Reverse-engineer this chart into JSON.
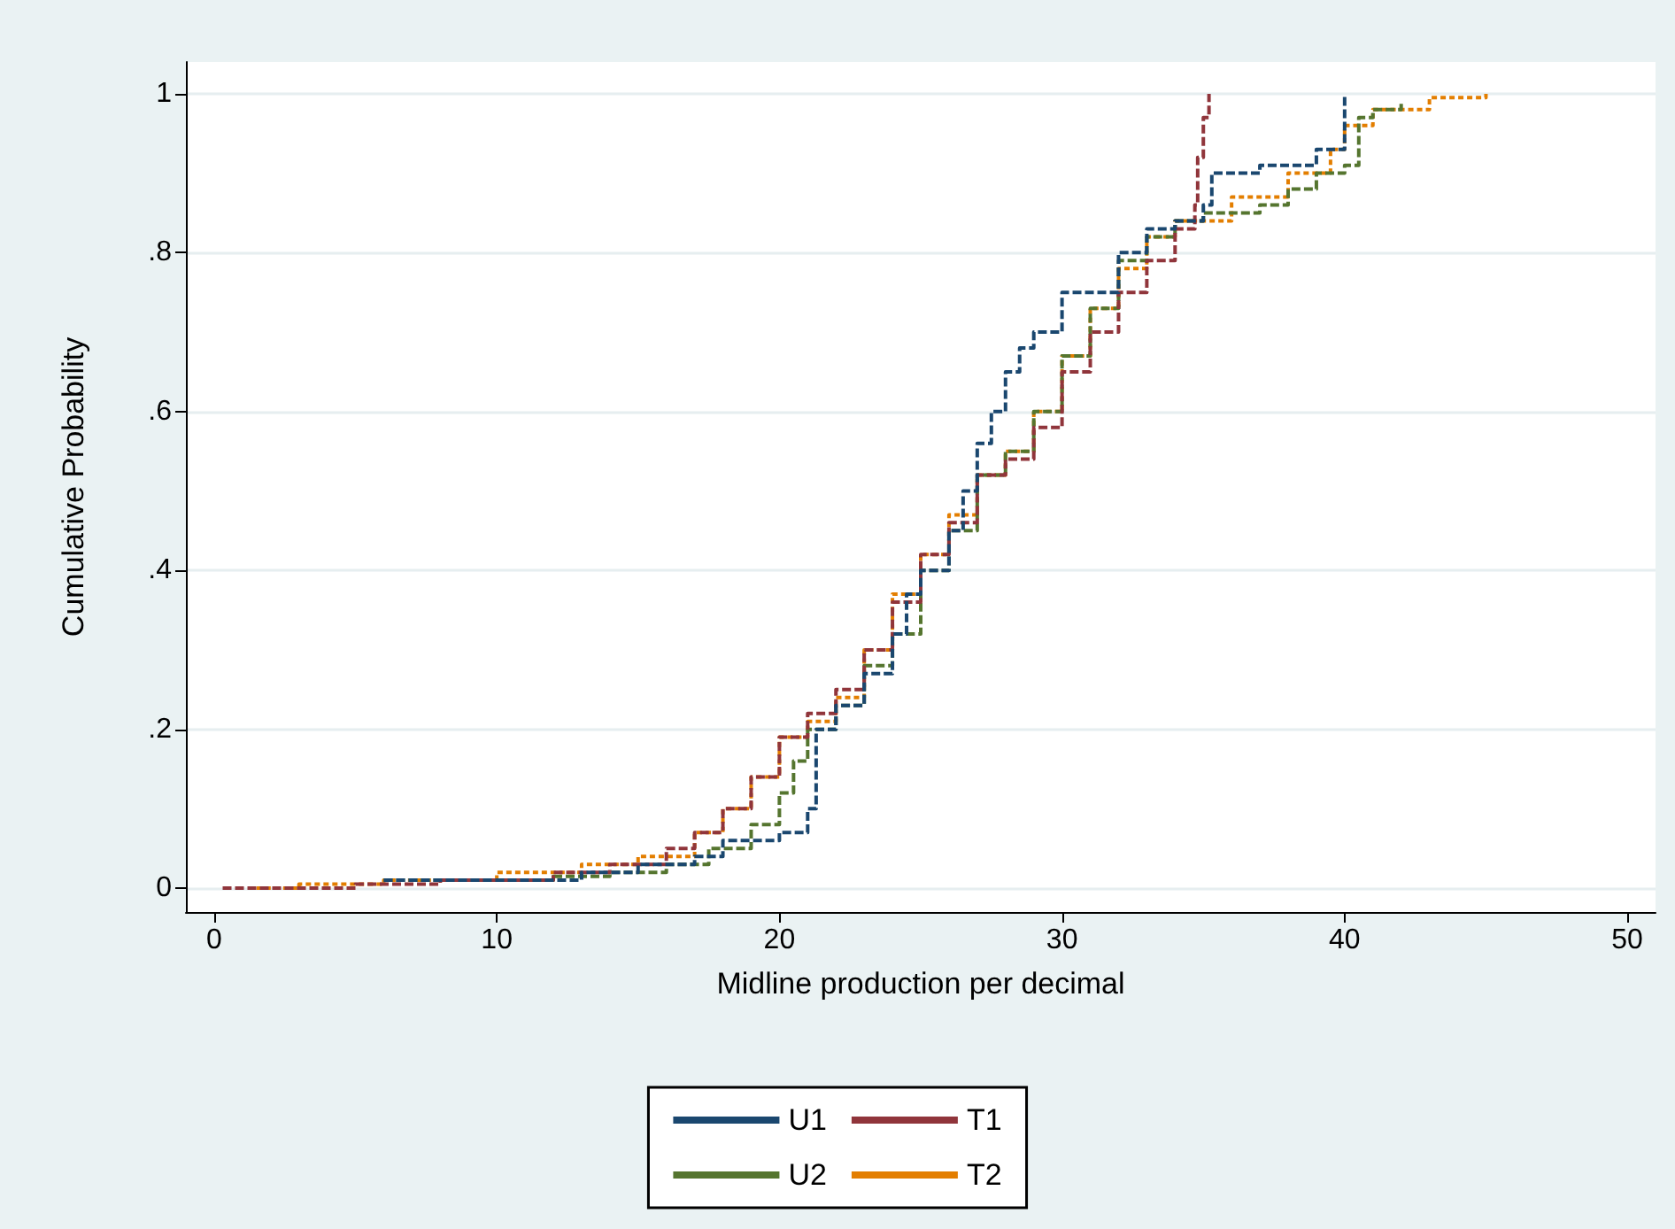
{
  "chart_data": {
    "type": "step",
    "xlabel": "Midline production per decimal",
    "ylabel": "Cumulative Probability",
    "xlim": [
      -1,
      51
    ],
    "xticks": [
      0,
      10,
      20,
      30,
      40,
      50
    ],
    "ylim": [
      -0.03,
      1.04
    ],
    "yticks": [
      {
        "value": 0,
        "label": "0"
      },
      {
        "value": 0.2,
        "label": ".2"
      },
      {
        "value": 0.4,
        "label": ".4"
      },
      {
        "value": 0.6,
        "label": ".6"
      },
      {
        "value": 0.8,
        "label": ".8"
      },
      {
        "value": 1,
        "label": "1"
      }
    ],
    "grid": "y",
    "legend": "bottom",
    "marker": "none",
    "series": [
      {
        "name": "U1",
        "color": "#1a476f",
        "line_style": "dashed",
        "x": [
          6,
          13,
          15,
          17,
          18,
          20,
          21,
          21.3,
          22,
          23,
          24,
          24.5,
          25,
          26,
          26.5,
          27,
          27.5,
          28,
          28.5,
          29,
          30,
          31,
          32,
          33,
          34,
          35,
          35.3,
          37,
          39,
          40
        ],
        "values": [
          0.01,
          0.02,
          0.03,
          0.04,
          0.06,
          0.07,
          0.1,
          0.2,
          0.23,
          0.27,
          0.32,
          0.37,
          0.4,
          0.45,
          0.5,
          0.56,
          0.6,
          0.65,
          0.68,
          0.7,
          0.75,
          0.75,
          0.8,
          0.83,
          0.84,
          0.86,
          0.9,
          0.91,
          0.93,
          1.0
        ]
      },
      {
        "name": "T1",
        "color": "#90353b",
        "line_style": "dashed",
        "x": [
          0.3,
          5,
          8,
          12,
          14,
          16,
          17,
          18,
          19,
          20,
          21,
          22,
          23,
          24,
          25,
          26,
          27,
          28,
          29,
          30,
          31,
          32,
          33,
          34,
          34.7,
          34.8,
          35,
          35.2
        ],
        "values": [
          0,
          0.005,
          0.01,
          0.02,
          0.03,
          0.05,
          0.07,
          0.1,
          0.14,
          0.19,
          0.22,
          0.25,
          0.3,
          0.36,
          0.42,
          0.46,
          0.52,
          0.54,
          0.58,
          0.65,
          0.7,
          0.75,
          0.79,
          0.83,
          0.86,
          0.92,
          0.97,
          1.0
        ]
      },
      {
        "name": "U2",
        "color": "#55752f",
        "line_style": "dashed",
        "x": [
          6,
          12,
          14,
          16,
          17.5,
          19,
          20,
          20.5,
          21,
          22,
          23,
          24,
          25,
          26,
          27,
          28,
          29,
          30,
          31,
          32,
          33,
          34,
          35,
          37,
          38,
          39,
          40,
          40.5,
          41,
          42
        ],
        "values": [
          0.01,
          0.015,
          0.02,
          0.03,
          0.05,
          0.08,
          0.12,
          0.16,
          0.2,
          0.23,
          0.28,
          0.32,
          0.4,
          0.45,
          0.52,
          0.55,
          0.6,
          0.67,
          0.73,
          0.79,
          0.82,
          0.84,
          0.85,
          0.86,
          0.88,
          0.9,
          0.91,
          0.97,
          0.98,
          0.99
        ]
      },
      {
        "name": "T2",
        "color": "#e37e00",
        "line_style": "dotted",
        "x": [
          1.5,
          3,
          6,
          10,
          13,
          15,
          17,
          18,
          19,
          20,
          21,
          22,
          23,
          24,
          25,
          26,
          27,
          28,
          29,
          30,
          31,
          32,
          33,
          34,
          36,
          38,
          39.5,
          40,
          41,
          43,
          45
        ],
        "values": [
          0,
          0.005,
          0.01,
          0.02,
          0.03,
          0.04,
          0.07,
          0.1,
          0.14,
          0.19,
          0.21,
          0.24,
          0.3,
          0.37,
          0.42,
          0.47,
          0.52,
          0.55,
          0.6,
          0.67,
          0.73,
          0.78,
          0.82,
          0.84,
          0.87,
          0.9,
          0.93,
          0.96,
          0.98,
          0.995,
          1.0
        ]
      }
    ]
  }
}
